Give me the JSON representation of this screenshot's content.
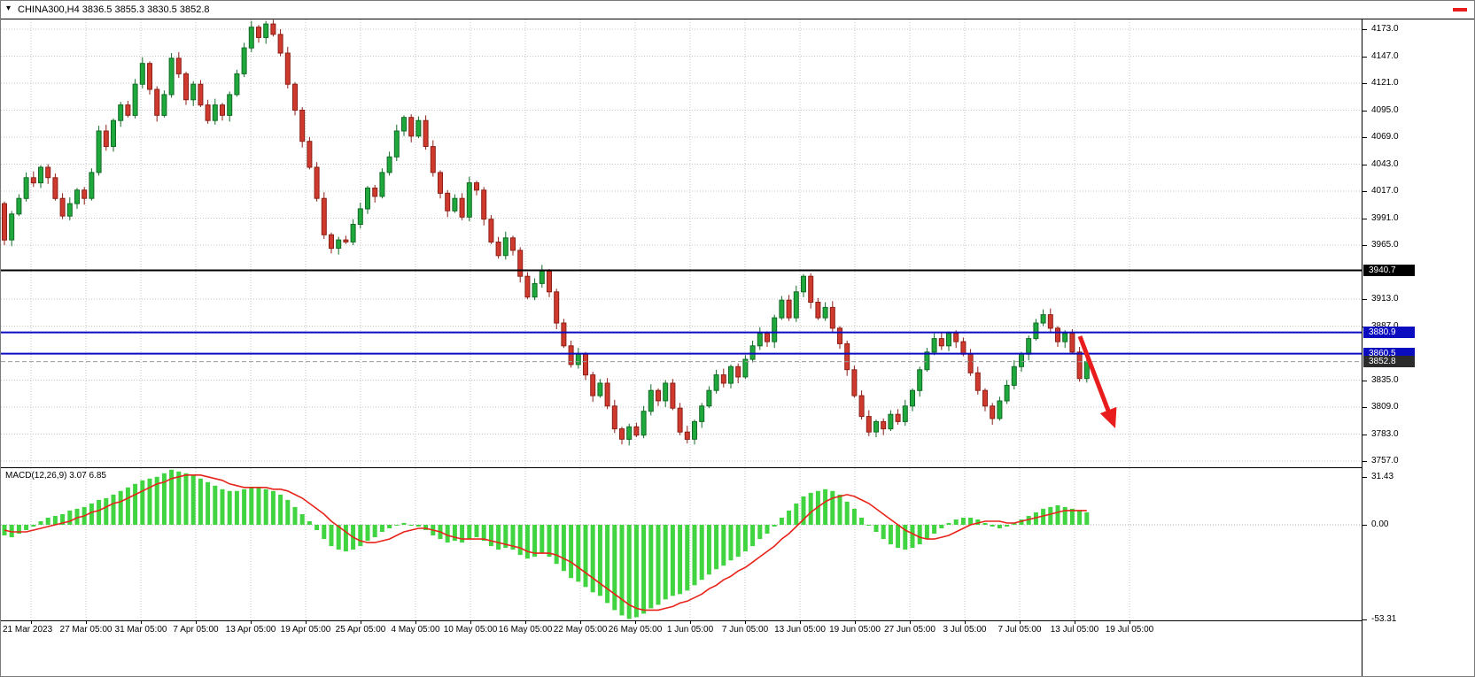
{
  "header": {
    "symbol_ohlc_label": "CHINA300,H4 3836.5 3855.3 3830.5 3852.8"
  },
  "icons": {
    "symbol_dropdown": "▾"
  },
  "chart_data": {
    "type": "candlestick",
    "symbol": "CHINA300",
    "timeframe": "H4",
    "current_bar": {
      "open": 3836.5,
      "high": 3855.3,
      "low": 3830.5,
      "close": 3852.8
    },
    "price_axis": {
      "max": 4173.0,
      "min": 3757.0,
      "tick_labels": [
        "4173.0",
        "4147.0",
        "4121.0",
        "4095.0",
        "4069.0",
        "4043.0",
        "4017.0",
        "3991.0",
        "3965.0",
        "3913.0",
        "3887.0",
        "3835.0",
        "3809.0",
        "3783.0",
        "3757.0"
      ]
    },
    "levels": [
      {
        "price": 3940.7,
        "label": "3940.7",
        "line_color": "#000000",
        "badge_color": "#000000",
        "style": "solid"
      },
      {
        "price": 3880.9,
        "label": "3880.9",
        "line_color": "#0b0bc0",
        "badge_color": "#0b0bc0",
        "style": "solid"
      },
      {
        "price": 3860.5,
        "label": "3860.5",
        "line_color": "#0b0bc0",
        "badge_color": "#0b0bc0",
        "style": "solid"
      },
      {
        "price": 3852.8,
        "label": "3852.8",
        "line_color": "#9a9a9a",
        "badge_color": "#2b2b2b",
        "style": "dashed"
      }
    ],
    "time_axis": {
      "labels": [
        "21 Mar 2023",
        "27 Mar 05:00",
        "31 Mar 05:00",
        "7 Apr 05:00",
        "13 Apr 05:00",
        "19 Apr 05:00",
        "25 Apr 05:00",
        "4 May 05:00",
        "10 May 05:00",
        "16 May 05:00",
        "22 May 05:00",
        "26 May 05:00",
        "1 Jun 05:00",
        "7 Jun 05:00",
        "13 Jun 05:00",
        "19 Jun 05:00",
        "27 Jun 05:00",
        "3 Jul 05:00",
        "7 Jul 05:00",
        "13 Jul 05:00",
        "19 Jul 05:00"
      ]
    },
    "candles": {
      "note": "closes estimated from chart, opens chain from previous close",
      "first_open": 4005,
      "closes": [
        3970,
        3995,
        4010,
        4030,
        4025,
        4040,
        4030,
        4010,
        3993,
        4005,
        4018,
        4010,
        4035,
        4075,
        4060,
        4085,
        4100,
        4090,
        4120,
        4140,
        4115,
        4090,
        4110,
        4145,
        4130,
        4105,
        4120,
        4100,
        4085,
        4100,
        4090,
        4110,
        4130,
        4155,
        4175,
        4165,
        4178,
        4168,
        4150,
        4120,
        4095,
        4065,
        4040,
        4010,
        3975,
        3962,
        3970,
        3968,
        3985,
        4000,
        4020,
        4012,
        4035,
        4050,
        4075,
        4088,
        4070,
        4085,
        4060,
        4035,
        4015,
        3998,
        4010,
        3992,
        4025,
        4018,
        3990,
        3968,
        3955,
        3972,
        3960,
        3935,
        3915,
        3928,
        3940,
        3920,
        3890,
        3868,
        3850,
        3860,
        3840,
        3820,
        3832,
        3810,
        3788,
        3778,
        3790,
        3782,
        3805,
        3825,
        3815,
        3832,
        3808,
        3785,
        3778,
        3795,
        3810,
        3825,
        3840,
        3832,
        3848,
        3838,
        3855,
        3868,
        3880,
        3872,
        3895,
        3912,
        3895,
        3920,
        3935,
        3910,
        3895,
        3905,
        3885,
        3870,
        3845,
        3820,
        3800,
        3785,
        3795,
        3788,
        3802,
        3795,
        3810,
        3825,
        3845,
        3862,
        3875,
        3868,
        3880,
        3872,
        3860,
        3842,
        3825,
        3810,
        3798,
        3815,
        3830,
        3848,
        3860,
        3875,
        3890,
        3898,
        3885,
        3872,
        3880,
        3862,
        3836.5,
        3852.8
      ]
    },
    "annotation": {
      "type": "arrow-down-right",
      "color": "#e81c1c"
    },
    "macd": {
      "label": "MACD(12,26,9) 3.07 6.85",
      "params": "12,26,9",
      "main_value": 3.07,
      "signal_value": 6.85,
      "axis_tick_labels": [
        "31.43",
        "0.00",
        "-53.31"
      ],
      "axis_ticks": [
        31.43,
        0,
        -53.31
      ],
      "histogram": [
        -6,
        -7,
        -5,
        -3,
        -1,
        2,
        4,
        5,
        6,
        8,
        9,
        10,
        12,
        14,
        15,
        17,
        19,
        21,
        23,
        25,
        26,
        27,
        29,
        31,
        30,
        29,
        28,
        26,
        24,
        22,
        20,
        19,
        19,
        20,
        21,
        21,
        20,
        19,
        17,
        14,
        10,
        6,
        2,
        -3,
        -8,
        -12,
        -14,
        -15,
        -14,
        -12,
        -9,
        -7,
        -4,
        -2,
        0,
        1,
        0,
        -1,
        -3,
        -6,
        -8,
        -10,
        -9,
        -10,
        -8,
        -7,
        -9,
        -12,
        -14,
        -13,
        -14,
        -17,
        -19,
        -18,
        -16,
        -18,
        -22,
        -26,
        -30,
        -32,
        -35,
        -38,
        -40,
        -44,
        -48,
        -51,
        -53,
        -52,
        -50,
        -47,
        -45,
        -42,
        -40,
        -39,
        -37,
        -34,
        -31,
        -28,
        -25,
        -23,
        -20,
        -18,
        -15,
        -12,
        -8,
        -5,
        -1,
        4,
        8,
        12,
        16,
        18,
        19,
        20,
        19,
        17,
        13,
        9,
        4,
        0,
        -4,
        -8,
        -11,
        -13,
        -14,
        -13,
        -11,
        -8,
        -5,
        -2,
        1,
        3,
        4,
        4,
        3,
        1,
        -1,
        -2,
        -1,
        1,
        3,
        5,
        7,
        9,
        10,
        11,
        10,
        9,
        8,
        7
      ],
      "signal": [
        -3,
        -4,
        -4,
        -4,
        -3,
        -2,
        -1,
        0,
        1,
        2,
        4,
        5,
        7,
        8,
        10,
        12,
        13,
        15,
        17,
        19,
        21,
        23,
        24,
        26,
        27,
        28,
        28,
        28,
        27,
        26,
        25,
        23,
        22,
        21,
        21,
        21,
        21,
        20,
        20,
        19,
        17,
        15,
        12,
        9,
        6,
        2,
        -1,
        -4,
        -7,
        -9,
        -10,
        -10,
        -9,
        -8,
        -6,
        -4,
        -3,
        -2,
        -2,
        -3,
        -4,
        -6,
        -7,
        -8,
        -8,
        -8,
        -8,
        -9,
        -10,
        -11,
        -12,
        -13,
        -15,
        -16,
        -16,
        -16,
        -17,
        -19,
        -21,
        -24,
        -27,
        -30,
        -33,
        -36,
        -39,
        -42,
        -45,
        -47,
        -48,
        -48,
        -48,
        -47,
        -46,
        -44,
        -43,
        -41,
        -39,
        -36,
        -34,
        -31,
        -29,
        -26,
        -24,
        -21,
        -18,
        -15,
        -12,
        -8,
        -5,
        -1,
        3,
        7,
        10,
        13,
        15,
        16,
        17,
        16,
        14,
        12,
        9,
        6,
        3,
        0,
        -3,
        -5,
        -7,
        -8,
        -8,
        -7,
        -6,
        -4,
        -2,
        0,
        1,
        2,
        2,
        2,
        1,
        1,
        2,
        3,
        4,
        5,
        6,
        7,
        8,
        8,
        8,
        8
      ]
    },
    "colors": {
      "up_fill": "#1fa83c",
      "up_stroke": "#116b25",
      "down_fill": "#d03a2e",
      "down_stroke": "#8c1f16",
      "grid": "#c6c6c6",
      "macd_hist": "#40d440",
      "macd_signal": "#e8231a",
      "arrow": "#e81c1c",
      "background": "#ffffff"
    }
  }
}
